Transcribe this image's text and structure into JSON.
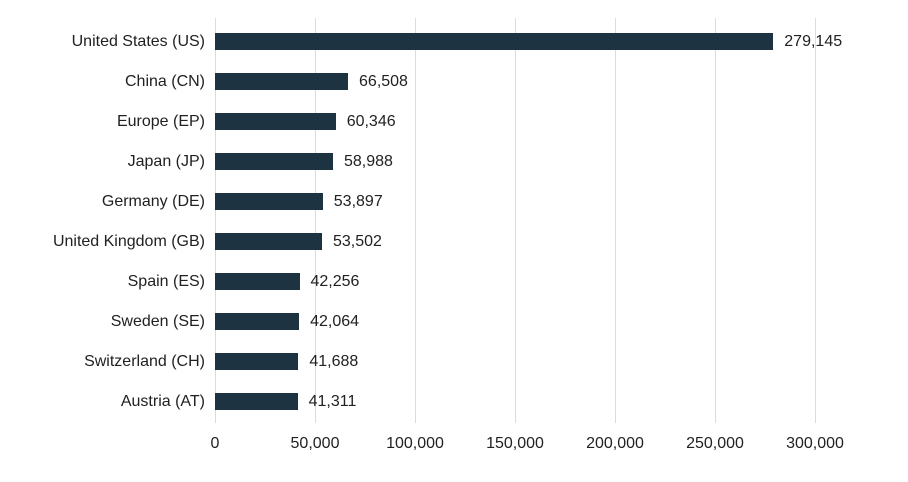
{
  "chart_data": {
    "type": "bar",
    "orientation": "horizontal",
    "title": "",
    "xlabel": "",
    "ylabel": "",
    "categories": [
      "United States (US)",
      "China (CN)",
      "Europe (EP)",
      "Japan (JP)",
      "Germany (DE)",
      "United Kingdom (GB)",
      "Spain (ES)",
      "Sweden (SE)",
      "Switzerland (CH)",
      "Austria (AT)"
    ],
    "values": [
      279145,
      66508,
      60346,
      58988,
      53897,
      53502,
      42256,
      42064,
      41688,
      41311
    ],
    "value_labels": [
      "279,145",
      "66,508",
      "60,346",
      "58,988",
      "53,897",
      "53,502",
      "42,256",
      "42,064",
      "41,688",
      "41,311"
    ],
    "xlim": [
      0,
      300000
    ],
    "x_ticks": [
      0,
      50000,
      100000,
      150000,
      200000,
      250000,
      300000
    ],
    "x_tick_labels": [
      "0",
      "50,000",
      "100,000",
      "150,000",
      "200,000",
      "250,000",
      "300,000"
    ],
    "grid": "vertical-gridlines-on",
    "legend": "none",
    "colors": {
      "bar": "#1e3342",
      "gridline": "#dcdcdc",
      "text": "#212121",
      "background": "#ffffff"
    }
  }
}
